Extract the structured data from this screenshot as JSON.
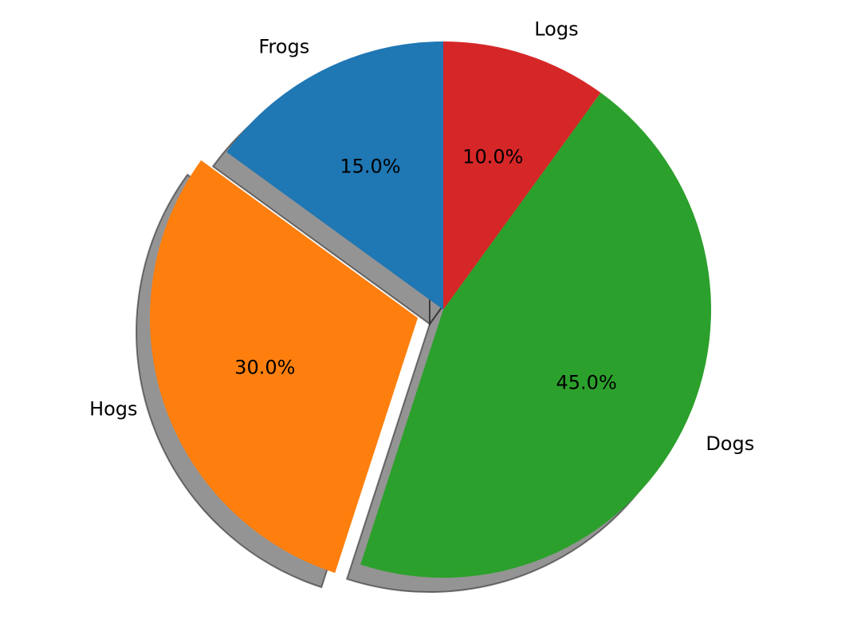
{
  "chart_data": {
    "type": "pie",
    "categories": [
      "Frogs",
      "Hogs",
      "Dogs",
      "Logs"
    ],
    "values": [
      15,
      30,
      45,
      10
    ],
    "percent_labels": [
      "15.0%",
      "30.0%",
      "45.0%",
      "10.0%"
    ],
    "explode": [
      0,
      0.1,
      0,
      0
    ],
    "shadow": true,
    "start_angle_deg": 90,
    "direction": "counterclockwise",
    "colors": [
      "#1f77b4",
      "#ff7f0e",
      "#2ca02c",
      "#d62728"
    ]
  }
}
